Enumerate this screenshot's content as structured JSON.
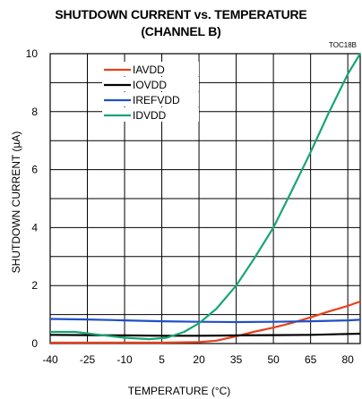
{
  "chart_data": {
    "type": "line",
    "title_line1": "SHUTDOWN CURRENT vs. TEMPERATURE",
    "title_line2": "(CHANNEL B)",
    "figure_id": "TOC18B",
    "xlabel": "TEMPERATURE (°C)",
    "ylabel": "SHUTDOWN CURRENT  (µA)",
    "xlim": [
      -40,
      85
    ],
    "ylim": [
      0,
      10
    ],
    "x_ticks": [
      -40,
      -25,
      -10,
      5,
      20,
      35,
      50,
      65,
      80
    ],
    "y_ticks": [
      0,
      2,
      4,
      6,
      8,
      10
    ],
    "grid": true,
    "legend_position": "top-left",
    "series": [
      {
        "name": "IAVDD",
        "color": "#e8401c",
        "points": [
          [
            -40,
            0.03
          ],
          [
            -25,
            0.03
          ],
          [
            -10,
            0.03
          ],
          [
            5,
            0.03
          ],
          [
            20,
            0.05
          ],
          [
            27,
            0.1
          ],
          [
            35,
            0.25
          ],
          [
            42,
            0.4
          ],
          [
            50,
            0.55
          ],
          [
            57,
            0.7
          ],
          [
            65,
            0.9
          ],
          [
            72,
            1.1
          ],
          [
            80,
            1.3
          ],
          [
            85,
            1.45
          ]
        ]
      },
      {
        "name": "IOVDD",
        "color": "#000000",
        "points": [
          [
            -40,
            0.3
          ],
          [
            -25,
            0.29
          ],
          [
            -10,
            0.28
          ],
          [
            5,
            0.27
          ],
          [
            20,
            0.27
          ],
          [
            35,
            0.28
          ],
          [
            50,
            0.29
          ],
          [
            65,
            0.3
          ],
          [
            80,
            0.33
          ],
          [
            85,
            0.34
          ]
        ]
      },
      {
        "name": "IREFVDD",
        "color": "#1f4fc9",
        "points": [
          [
            -40,
            0.85
          ],
          [
            -25,
            0.83
          ],
          [
            -10,
            0.8
          ],
          [
            5,
            0.77
          ],
          [
            20,
            0.75
          ],
          [
            35,
            0.74
          ],
          [
            50,
            0.75
          ],
          [
            65,
            0.77
          ],
          [
            80,
            0.8
          ],
          [
            85,
            0.82
          ]
        ]
      },
      {
        "name": "IDVDD",
        "color": "#17a673",
        "points": [
          [
            -40,
            0.4
          ],
          [
            -30,
            0.4
          ],
          [
            -20,
            0.3
          ],
          [
            -10,
            0.2
          ],
          [
            0,
            0.15
          ],
          [
            7,
            0.2
          ],
          [
            14,
            0.4
          ],
          [
            20,
            0.7
          ],
          [
            27,
            1.2
          ],
          [
            35,
            2.0
          ],
          [
            42,
            2.9
          ],
          [
            50,
            4.0
          ],
          [
            57,
            5.2
          ],
          [
            65,
            6.6
          ],
          [
            72,
            7.9
          ],
          [
            80,
            9.3
          ],
          [
            85,
            10.0
          ]
        ]
      }
    ]
  }
}
